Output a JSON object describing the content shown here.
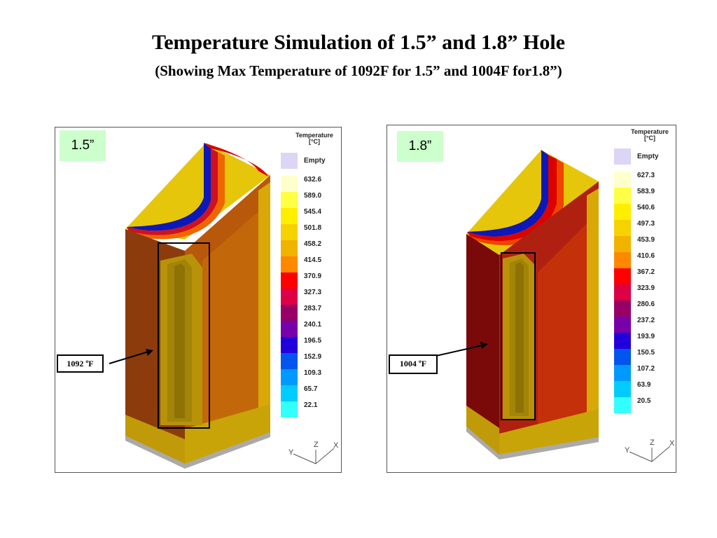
{
  "slide": {
    "title": "Temperature Simulation of 1.5” and 1.8” Hole",
    "subtitle": "(Showing Max Temperature of 1092F for 1.5” and 1004F for1.8”)"
  },
  "panels": [
    {
      "tag": "1.5”",
      "legend_title_1": "Temperature",
      "legend_title_2": "[°C]",
      "legend_empty": "Empty",
      "legend_values": [
        "632.6",
        "589.0",
        "545.4",
        "501.8",
        "458.2",
        "414.5",
        "370.9",
        "327.3",
        "283.7",
        "240.1",
        "196.5",
        "152.9",
        "109.3",
        "65.7",
        "22.1"
      ],
      "callout_value": "1092",
      "callout_unit": "ºF",
      "axes": {
        "x": "X",
        "y": "Y",
        "z": "Z"
      }
    },
    {
      "tag": "1.8”",
      "legend_title_1": "Temperature",
      "legend_title_2": "[°C]",
      "legend_empty": "Empty",
      "legend_values": [
        "627.3",
        "583.9",
        "540.6",
        "497.3",
        "453.9",
        "410.6",
        "367.2",
        "323.9",
        "280.6",
        "237.2",
        "193.9",
        "150.5",
        "107.2",
        "63.9",
        "20.5"
      ],
      "callout_value": "1004",
      "callout_unit": "ºF",
      "axes": {
        "x": "X",
        "y": "Y",
        "z": "Z"
      }
    }
  ],
  "legend_colors": [
    "#ffffcc",
    "#ffff44",
    "#ffee00",
    "#f5d200",
    "#f2b200",
    "#ff8800",
    "#ff0000",
    "#dd0044",
    "#990066",
    "#7700aa",
    "#2200dd",
    "#0055ee",
    "#0099ff",
    "#00ccff",
    "#33ffff"
  ],
  "legend_empty_color": "#ddd5f5",
  "model_colors": {
    "face_left_1": "#8c3c0c",
    "face_left_2": "#7a0a0a",
    "face_right_1": "#b8580a",
    "face_right_2": "#b02010",
    "face_mid": "#b89208",
    "edge_yellow": "#e6c60a",
    "bore_blue": "#1020c0",
    "bore_red": "#dd0000",
    "box": "#000000"
  }
}
